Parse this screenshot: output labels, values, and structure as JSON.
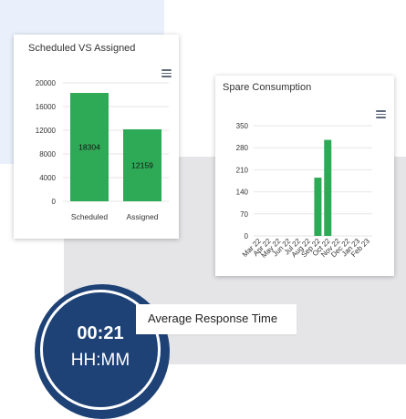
{
  "chart_data": [
    {
      "type": "bar",
      "title": "Scheduled VS Assigned",
      "categories": [
        "Scheduled",
        "Assigned"
      ],
      "values": [
        18304,
        12159
      ],
      "data_labels": [
        "18304",
        "12159"
      ],
      "yticks": [
        "20000",
        "16000",
        "12000",
        "8000",
        "4000",
        "0"
      ],
      "ylim": [
        0,
        20000
      ],
      "color": "#2eaa57",
      "grid": true,
      "xlabel": "",
      "ylabel": ""
    },
    {
      "type": "bar",
      "title": "Spare Consumption",
      "categories": [
        "Mar 22",
        "Apr 22",
        "May 22",
        "Jun 22",
        "Jul 22",
        "Aug 22",
        "Sep 22",
        "Oct 22",
        "Nov 22",
        "Dec 22",
        "Jan 23",
        "Feb 23"
      ],
      "values": [
        0,
        0,
        0,
        0,
        0,
        0,
        185,
        305,
        0,
        0,
        0,
        0
      ],
      "yticks": [
        "350",
        "280",
        "210",
        "140",
        "70",
        "0"
      ],
      "ylim": [
        0,
        350
      ],
      "color": "#2eaa57",
      "grid": true,
      "xlabel": "",
      "ylabel": ""
    }
  ],
  "widget": {
    "value": "00:21",
    "unit": "HH:MM",
    "label": "Average Response Time",
    "color": "#1e4276"
  },
  "icons": {
    "chart_menu": "hamburger-menu-icon"
  }
}
